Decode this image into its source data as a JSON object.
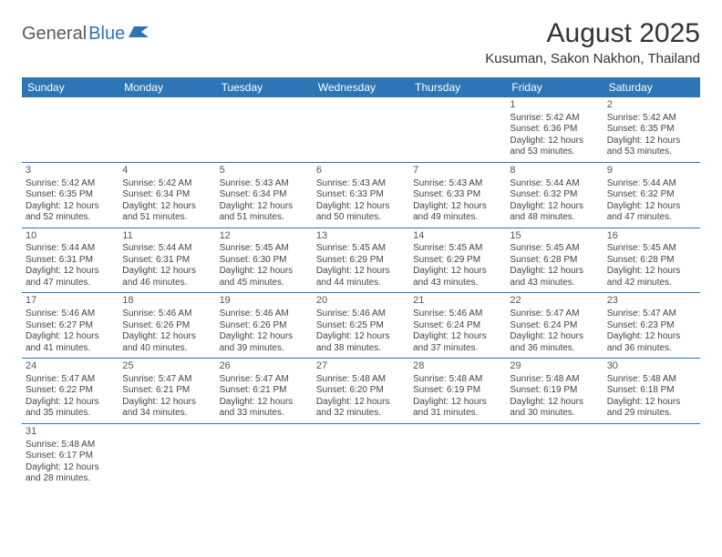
{
  "logo": {
    "part1": "General",
    "part2": "Blue"
  },
  "title": "August 2025",
  "subtitle": "Kusuman, Sakon Nakhon, Thailand",
  "colors": {
    "header_bg": "#2e75b6",
    "header_text": "#ffffff",
    "row_border": "#2e75b6",
    "body_text": "#444444",
    "logo_gray": "#5a5a5a",
    "logo_blue": "#2e75b6",
    "background": "#ffffff"
  },
  "day_headers": [
    "Sunday",
    "Monday",
    "Tuesday",
    "Wednesday",
    "Thursday",
    "Friday",
    "Saturday"
  ],
  "weeks": [
    [
      null,
      null,
      null,
      null,
      null,
      {
        "n": "1",
        "sunrise": "Sunrise: 5:42 AM",
        "sunset": "Sunset: 6:36 PM",
        "day1": "Daylight: 12 hours",
        "day2": "and 53 minutes."
      },
      {
        "n": "2",
        "sunrise": "Sunrise: 5:42 AM",
        "sunset": "Sunset: 6:35 PM",
        "day1": "Daylight: 12 hours",
        "day2": "and 53 minutes."
      }
    ],
    [
      {
        "n": "3",
        "sunrise": "Sunrise: 5:42 AM",
        "sunset": "Sunset: 6:35 PM",
        "day1": "Daylight: 12 hours",
        "day2": "and 52 minutes."
      },
      {
        "n": "4",
        "sunrise": "Sunrise: 5:42 AM",
        "sunset": "Sunset: 6:34 PM",
        "day1": "Daylight: 12 hours",
        "day2": "and 51 minutes."
      },
      {
        "n": "5",
        "sunrise": "Sunrise: 5:43 AM",
        "sunset": "Sunset: 6:34 PM",
        "day1": "Daylight: 12 hours",
        "day2": "and 51 minutes."
      },
      {
        "n": "6",
        "sunrise": "Sunrise: 5:43 AM",
        "sunset": "Sunset: 6:33 PM",
        "day1": "Daylight: 12 hours",
        "day2": "and 50 minutes."
      },
      {
        "n": "7",
        "sunrise": "Sunrise: 5:43 AM",
        "sunset": "Sunset: 6:33 PM",
        "day1": "Daylight: 12 hours",
        "day2": "and 49 minutes."
      },
      {
        "n": "8",
        "sunrise": "Sunrise: 5:44 AM",
        "sunset": "Sunset: 6:32 PM",
        "day1": "Daylight: 12 hours",
        "day2": "and 48 minutes."
      },
      {
        "n": "9",
        "sunrise": "Sunrise: 5:44 AM",
        "sunset": "Sunset: 6:32 PM",
        "day1": "Daylight: 12 hours",
        "day2": "and 47 minutes."
      }
    ],
    [
      {
        "n": "10",
        "sunrise": "Sunrise: 5:44 AM",
        "sunset": "Sunset: 6:31 PM",
        "day1": "Daylight: 12 hours",
        "day2": "and 47 minutes."
      },
      {
        "n": "11",
        "sunrise": "Sunrise: 5:44 AM",
        "sunset": "Sunset: 6:31 PM",
        "day1": "Daylight: 12 hours",
        "day2": "and 46 minutes."
      },
      {
        "n": "12",
        "sunrise": "Sunrise: 5:45 AM",
        "sunset": "Sunset: 6:30 PM",
        "day1": "Daylight: 12 hours",
        "day2": "and 45 minutes."
      },
      {
        "n": "13",
        "sunrise": "Sunrise: 5:45 AM",
        "sunset": "Sunset: 6:29 PM",
        "day1": "Daylight: 12 hours",
        "day2": "and 44 minutes."
      },
      {
        "n": "14",
        "sunrise": "Sunrise: 5:45 AM",
        "sunset": "Sunset: 6:29 PM",
        "day1": "Daylight: 12 hours",
        "day2": "and 43 minutes."
      },
      {
        "n": "15",
        "sunrise": "Sunrise: 5:45 AM",
        "sunset": "Sunset: 6:28 PM",
        "day1": "Daylight: 12 hours",
        "day2": "and 43 minutes."
      },
      {
        "n": "16",
        "sunrise": "Sunrise: 5:45 AM",
        "sunset": "Sunset: 6:28 PM",
        "day1": "Daylight: 12 hours",
        "day2": "and 42 minutes."
      }
    ],
    [
      {
        "n": "17",
        "sunrise": "Sunrise: 5:46 AM",
        "sunset": "Sunset: 6:27 PM",
        "day1": "Daylight: 12 hours",
        "day2": "and 41 minutes."
      },
      {
        "n": "18",
        "sunrise": "Sunrise: 5:46 AM",
        "sunset": "Sunset: 6:26 PM",
        "day1": "Daylight: 12 hours",
        "day2": "and 40 minutes."
      },
      {
        "n": "19",
        "sunrise": "Sunrise: 5:46 AM",
        "sunset": "Sunset: 6:26 PM",
        "day1": "Daylight: 12 hours",
        "day2": "and 39 minutes."
      },
      {
        "n": "20",
        "sunrise": "Sunrise: 5:46 AM",
        "sunset": "Sunset: 6:25 PM",
        "day1": "Daylight: 12 hours",
        "day2": "and 38 minutes."
      },
      {
        "n": "21",
        "sunrise": "Sunrise: 5:46 AM",
        "sunset": "Sunset: 6:24 PM",
        "day1": "Daylight: 12 hours",
        "day2": "and 37 minutes."
      },
      {
        "n": "22",
        "sunrise": "Sunrise: 5:47 AM",
        "sunset": "Sunset: 6:24 PM",
        "day1": "Daylight: 12 hours",
        "day2": "and 36 minutes."
      },
      {
        "n": "23",
        "sunrise": "Sunrise: 5:47 AM",
        "sunset": "Sunset: 6:23 PM",
        "day1": "Daylight: 12 hours",
        "day2": "and 36 minutes."
      }
    ],
    [
      {
        "n": "24",
        "sunrise": "Sunrise: 5:47 AM",
        "sunset": "Sunset: 6:22 PM",
        "day1": "Daylight: 12 hours",
        "day2": "and 35 minutes."
      },
      {
        "n": "25",
        "sunrise": "Sunrise: 5:47 AM",
        "sunset": "Sunset: 6:21 PM",
        "day1": "Daylight: 12 hours",
        "day2": "and 34 minutes."
      },
      {
        "n": "26",
        "sunrise": "Sunrise: 5:47 AM",
        "sunset": "Sunset: 6:21 PM",
        "day1": "Daylight: 12 hours",
        "day2": "and 33 minutes."
      },
      {
        "n": "27",
        "sunrise": "Sunrise: 5:48 AM",
        "sunset": "Sunset: 6:20 PM",
        "day1": "Daylight: 12 hours",
        "day2": "and 32 minutes."
      },
      {
        "n": "28",
        "sunrise": "Sunrise: 5:48 AM",
        "sunset": "Sunset: 6:19 PM",
        "day1": "Daylight: 12 hours",
        "day2": "and 31 minutes."
      },
      {
        "n": "29",
        "sunrise": "Sunrise: 5:48 AM",
        "sunset": "Sunset: 6:19 PM",
        "day1": "Daylight: 12 hours",
        "day2": "and 30 minutes."
      },
      {
        "n": "30",
        "sunrise": "Sunrise: 5:48 AM",
        "sunset": "Sunset: 6:18 PM",
        "day1": "Daylight: 12 hours",
        "day2": "and 29 minutes."
      }
    ],
    [
      {
        "n": "31",
        "sunrise": "Sunrise: 5:48 AM",
        "sunset": "Sunset: 6:17 PM",
        "day1": "Daylight: 12 hours",
        "day2": "and 28 minutes."
      },
      null,
      null,
      null,
      null,
      null,
      null
    ]
  ]
}
